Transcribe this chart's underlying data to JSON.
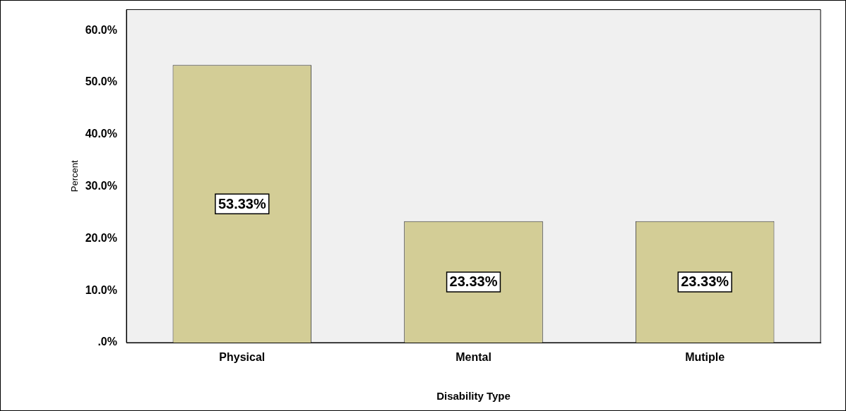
{
  "chart_data": {
    "type": "bar",
    "xlabel": "Disability Type",
    "ylabel": "Percent",
    "categories": [
      "Physical",
      "Mental",
      "Mutiple"
    ],
    "values": [
      53.33,
      23.33,
      23.33
    ],
    "value_labels": [
      "53.33%",
      "23.33%",
      "23.33%"
    ],
    "color": "#d3cd96",
    "ylim": [
      0,
      64
    ],
    "yticks": [
      {
        "value": 0,
        "label": ".0%"
      },
      {
        "value": 10,
        "label": "10.0%"
      },
      {
        "value": 20,
        "label": "20.0%"
      },
      {
        "value": 30,
        "label": "30.0%"
      },
      {
        "value": 40,
        "label": "40.0%"
      },
      {
        "value": 50,
        "label": "50.0%"
      },
      {
        "value": 60,
        "label": "60.0%"
      }
    ],
    "grid": false,
    "legend": false
  }
}
